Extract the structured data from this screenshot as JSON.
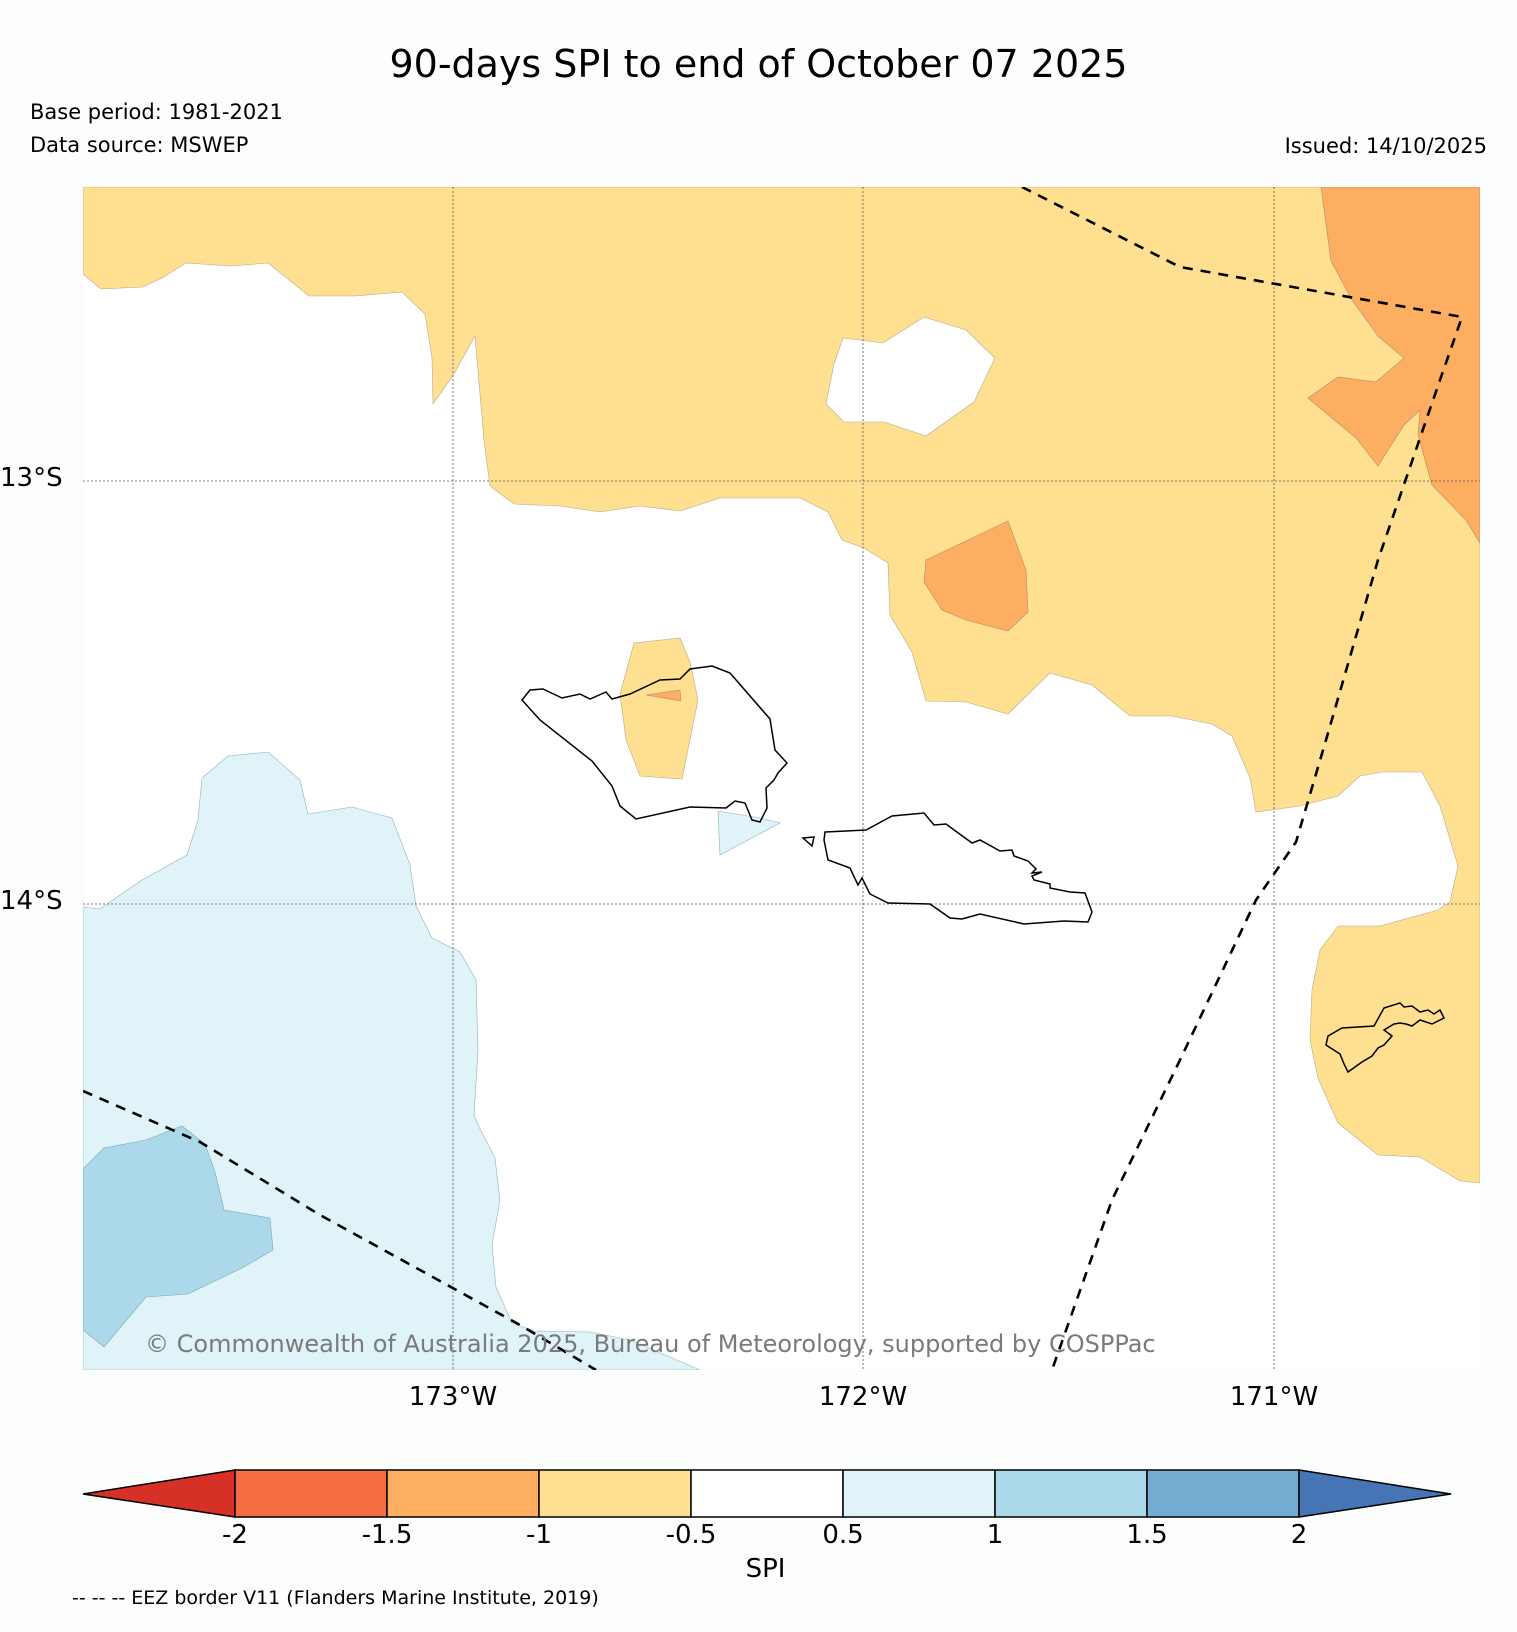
{
  "title": "90-days SPI to end of October 07 2025",
  "base_period": "Base period: 1981-2021",
  "data_source": "Data source: MSWEP",
  "issued": "Issued: 14/10/2025",
  "copyright": "© Commonwealth of Australia 2025, Bureau of Meteorology, supported by COSPPac",
  "latitude_labels": [
    "13°S",
    "14°S"
  ],
  "longitude_labels": [
    "173°W",
    "172°W",
    "171°W"
  ],
  "colorbar": {
    "label": "SPI",
    "ticks": [
      "-2",
      "-1.5",
      "-1",
      "-0.5",
      "0.5",
      "1",
      "1.5",
      "2"
    ],
    "colors": {
      "below_-2": "#d73027",
      "-2_to_-1.5": "#f46d43",
      "-1.5_to_-1": "#fdae61",
      "-1_to_-0.5": "#fee090",
      "-0.5_to_0.5": "#ffffff",
      "0.5_to_1": "#e0f3f8",
      "1_to_1.5": "#abd9e9",
      "1.5_to_2": "#74add1",
      "above_2": "#4575b4"
    }
  },
  "eez_note": "-- -- -- EEZ border V11 (Flanders Marine Institute, 2019)"
}
